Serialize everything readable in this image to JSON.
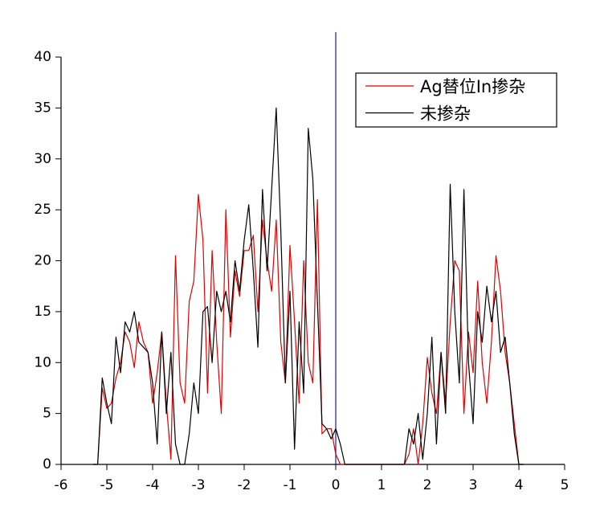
{
  "chart_data": {
    "type": "line",
    "x": [
      -5.3,
      -5.2,
      -5.1,
      -5.0,
      -4.9,
      -4.8,
      -4.7,
      -4.6,
      -4.5,
      -4.4,
      -4.3,
      -4.2,
      -4.1,
      -4.0,
      -3.9,
      -3.8,
      -3.7,
      -3.6,
      -3.5,
      -3.4,
      -3.3,
      -3.2,
      -3.1,
      -3.0,
      -2.9,
      -2.8,
      -2.7,
      -2.6,
      -2.5,
      -2.4,
      -2.3,
      -2.2,
      -2.1,
      -2.0,
      -1.9,
      -1.8,
      -1.7,
      -1.6,
      -1.5,
      -1.4,
      -1.3,
      -1.2,
      -1.1,
      -1.0,
      -0.9,
      -0.8,
      -0.7,
      -0.6,
      -0.5,
      -0.4,
      -0.3,
      -0.2,
      -0.1,
      0,
      0.1,
      0.2,
      1.5,
      1.6,
      1.7,
      1.8,
      1.9,
      2.0,
      2.1,
      2.2,
      2.3,
      2.4,
      2.5,
      2.6,
      2.7,
      2.8,
      2.9,
      3.0,
      3.1,
      3.2,
      3.3,
      3.4,
      3.5,
      3.6,
      3.7,
      3.8,
      3.9,
      4.0,
      4.1
    ],
    "series": [
      {
        "name": "Ag替位In掺杂",
        "color": "#e00000",
        "values": [
          0,
          0,
          7.5,
          5.5,
          6,
          8.5,
          10,
          13,
          12,
          9.5,
          14,
          12,
          11,
          6,
          9,
          13,
          6,
          0.5,
          20.5,
          8,
          6,
          16,
          18,
          26.5,
          22,
          7,
          21,
          12,
          5,
          25,
          12.5,
          19,
          16.5,
          21,
          21,
          22.5,
          15,
          24,
          20,
          17,
          24,
          12,
          8,
          21.5,
          14,
          6,
          20,
          10,
          8,
          26,
          3,
          3.5,
          3.5,
          1,
          0,
          0,
          0,
          1,
          3.5,
          0,
          4,
          10.5,
          7,
          5,
          11,
          6,
          14,
          20,
          19,
          5,
          13,
          9,
          18,
          10,
          6,
          12,
          20.5,
          17,
          11,
          8,
          4,
          0,
          0
        ]
      },
      {
        "name": "未掺杂",
        "color": "#000000",
        "values": [
          0,
          0,
          8.5,
          6,
          4,
          12.5,
          9,
          14,
          13,
          15,
          12,
          11.5,
          11,
          8,
          2,
          13,
          5,
          11,
          2,
          0,
          0,
          3,
          8,
          5,
          15,
          15.5,
          10,
          17,
          15,
          17,
          14,
          20,
          17,
          22,
          25.5,
          19,
          11.5,
          27,
          19,
          27,
          35,
          23,
          8,
          17,
          1.5,
          14,
          7,
          33,
          28,
          16,
          4,
          3.5,
          2.5,
          3.5,
          2,
          0,
          0,
          3.5,
          2,
          5,
          0.5,
          5,
          12.5,
          2,
          11,
          5,
          27.5,
          15,
          8,
          27,
          10,
          4,
          15,
          12,
          17.5,
          14,
          17,
          11,
          12.5,
          8,
          3,
          0,
          0
        ]
      }
    ],
    "xlim": [
      -6,
      5
    ],
    "xticks": [
      -6,
      -5,
      -4,
      -3,
      -2,
      -1,
      0,
      1,
      2,
      3,
      4,
      5
    ],
    "ylim": [
      0,
      40
    ],
    "yticks": [
      0,
      5,
      10,
      15,
      20,
      25,
      30,
      35,
      40
    ],
    "vline": {
      "x": 0,
      "color": "#1a1aa0"
    },
    "legend": "top-right",
    "grid": false
  }
}
